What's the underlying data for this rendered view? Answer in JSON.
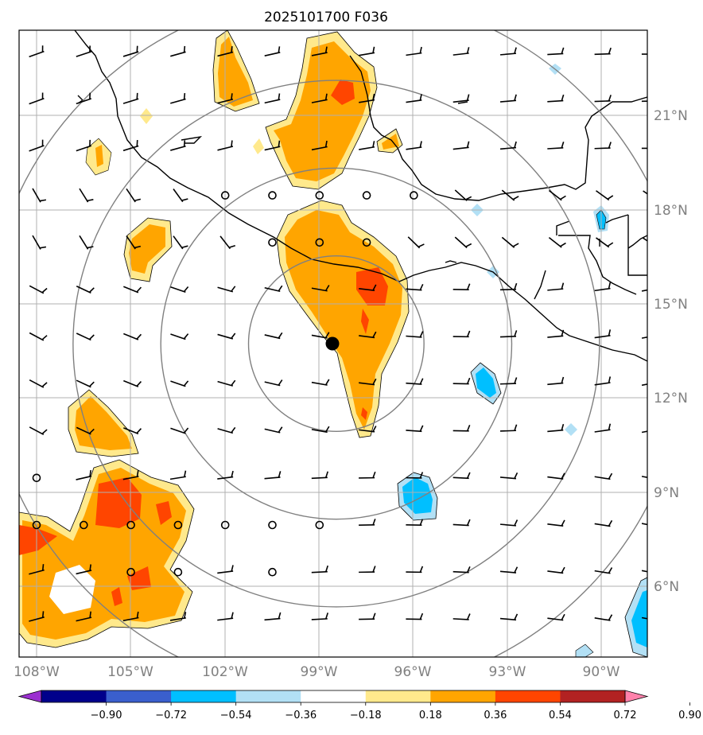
{
  "title": "2025101700 F036",
  "center": {
    "lon": -98.6,
    "lat": 13.7
  },
  "map": {
    "lon_range": [
      -109.0,
      -88.4
    ],
    "lat_range": [
      3.7,
      23.7
    ]
  },
  "lat_labels": [
    "6°N",
    "9°N",
    "12°N",
    "15°N",
    "18°N",
    "21°N"
  ],
  "lat_values": [
    6,
    9,
    12,
    15,
    18,
    21
  ],
  "lon_labels": [
    "108°W",
    "105°W",
    "102°W",
    "99°W",
    "96°W",
    "93°W",
    "90°W"
  ],
  "lon_values": [
    -108,
    -105,
    -102,
    -99,
    -96,
    -93,
    -90
  ],
  "range_rings_deg": [
    2.8,
    5.6,
    8.4,
    11.2
  ],
  "colorbar": {
    "colors": [
      "#9b30d0",
      "#00008b",
      "#3a5fcd",
      "#00bfff",
      "#b2e0f5",
      "#ffffff",
      "#ffe98c",
      "#ffa500",
      "#ff4500",
      "#b22222",
      "#ff82ab"
    ],
    "tick_labels": [
      "−0.90",
      "−0.72",
      "−0.54",
      "−0.36",
      "−0.18",
      "0.18",
      "0.36",
      "0.54",
      "0.72",
      "0.90"
    ],
    "extend": "both"
  }
}
